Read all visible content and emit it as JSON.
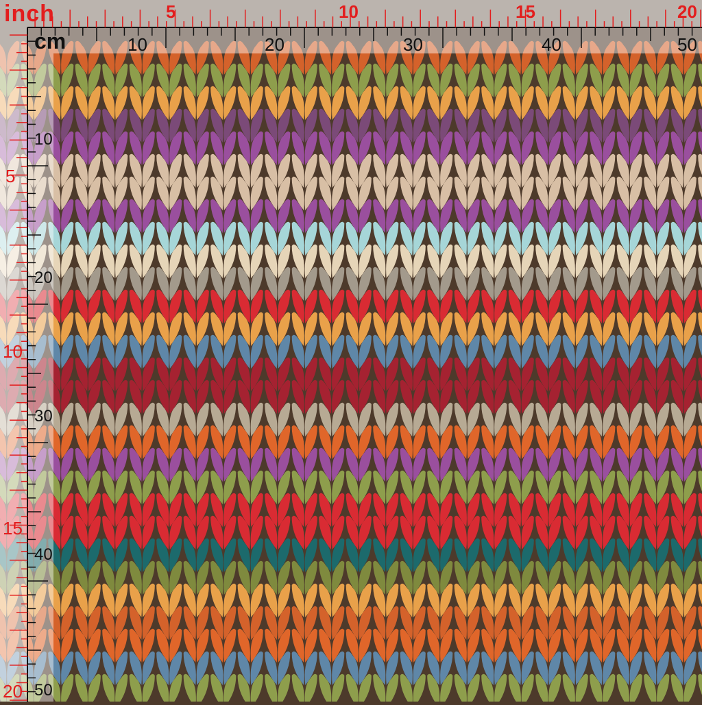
{
  "ruler": {
    "inch_unit": "inch",
    "cm_unit": "cm",
    "inch_top_labels": [
      "5",
      "10",
      "15",
      "20"
    ],
    "cm_top_labels": [
      "10",
      "20",
      "30",
      "40",
      "50"
    ],
    "inch_left_labels": [
      "5",
      "10",
      "15",
      "20"
    ],
    "cm_left_labels": [
      "10",
      "20",
      "30",
      "40",
      "50"
    ],
    "inch_color": "#e31d1d",
    "cm_color": "#111111"
  },
  "fabric": {
    "pattern": "knit-stitch-chevron-stripes",
    "background_color": "#4d3a2b",
    "stripe_colors": [
      "#d4622b",
      "#8e9e4c",
      "#e9a14a",
      "#7b4a78",
      "#9a4f9e",
      "#d8bfa5",
      "#d8bfa5",
      "#9a4f9e",
      "#a6d6d8",
      "#e6d5b8",
      "#a39a8c",
      "#d92b33",
      "#e9a14a",
      "#5f87a8",
      "#a52231",
      "#a52231",
      "#b7aa94",
      "#e0662a",
      "#9a4f9e",
      "#8e9e4c",
      "#d92b33",
      "#d92b33",
      "#1c6a6c",
      "#7f8a3e",
      "#e9a14a",
      "#d4622b",
      "#e0662a",
      "#5f87a8",
      "#8e9e4c",
      "#d92b33",
      "#1f6f72"
    ]
  }
}
